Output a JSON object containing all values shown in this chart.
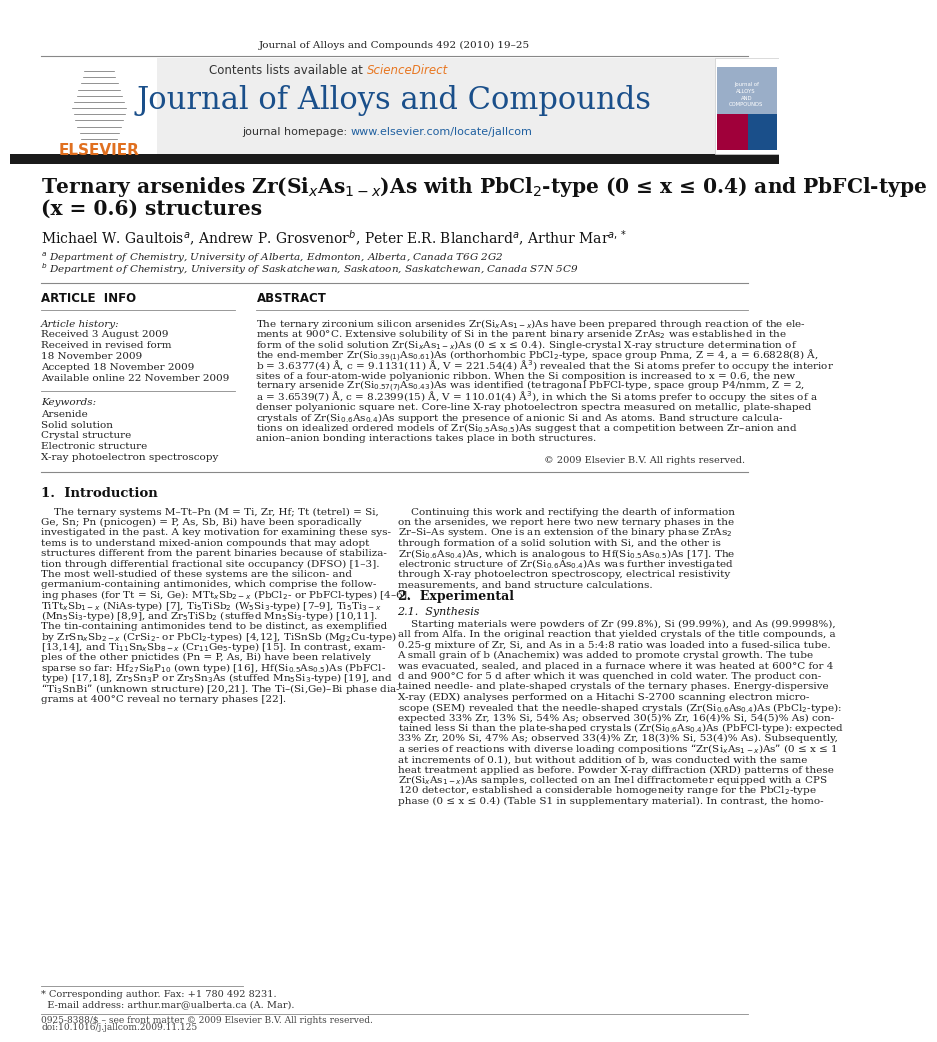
{
  "journal_header": "Journal of Alloys and Compounds 492 (2010) 19–25",
  "journal_name": "Journal of Alloys and Compounds",
  "contents_line": "Contents lists available at ScienceDirect",
  "homepage_line": "journal homepage: www.elsevier.com/locate/jallcom",
  "title_line1": "Ternary arsenides Zr(Si$_x$As$_{1-x}$)As with PbCl$_2$-type (0 ≤ x ≤ 0.4) and PbFCl-type",
  "title_line2": "(x = 0.6) structures",
  "authors": "Michael W. Gaultois$^{a}$, Andrew P. Grosvenor$^{b}$, Peter E.R. Blanchard$^{a}$, Arthur Mar$^{a,*}$",
  "affil_a": "$^a$ Department of Chemistry, University of Alberta, Edmonton, Alberta, Canada T6G 2G2",
  "affil_b": "$^b$ Department of Chemistry, University of Saskatchewan, Saskatoon, Saskatchewan, Canada S7N 5C9",
  "article_info_header": "ARTICLE  INFO",
  "abstract_header": "ABSTRACT",
  "article_history_label": "Article history:",
  "received": "Received 3 August 2009",
  "received_revised": "Received in revised form",
  "received_revised2": "18 November 2009",
  "accepted": "Accepted 18 November 2009",
  "available": "Available online 22 November 2009",
  "keywords_label": "Keywords:",
  "keywords": [
    "Arsenide",
    "Solid solution",
    "Crystal structure",
    "Electronic structure",
    "X-ray photoelectron spectroscopy"
  ],
  "copyright": "© 2009 Elsevier B.V. All rights reserved.",
  "intro_header": "1.  Introduction",
  "experimental_header": "2.  Experimental",
  "synthesis_subheader": "2.1.  Synthesis",
  "footnote1": "* Corresponding author. Fax: +1 780 492 8231.",
  "footnote2": "  E-mail address: arthur.mar@ualberta.ca (A. Mar).",
  "footer_left": "0925-8388/$ – see front matter © 2009 Elsevier B.V. All rights reserved.",
  "footer_doi": "doi:10.1016/j.jallcom.2009.11.125",
  "bg_color": "#ffffff",
  "text_color": "#000000",
  "blue_color": "#1a4f8a",
  "orange_color": "#e07020",
  "header_bg": "#eeeeee",
  "dark_bar_color": "#1a1a1a",
  "science_direct_color": "#e87722",
  "journal_color": "#2060a0"
}
